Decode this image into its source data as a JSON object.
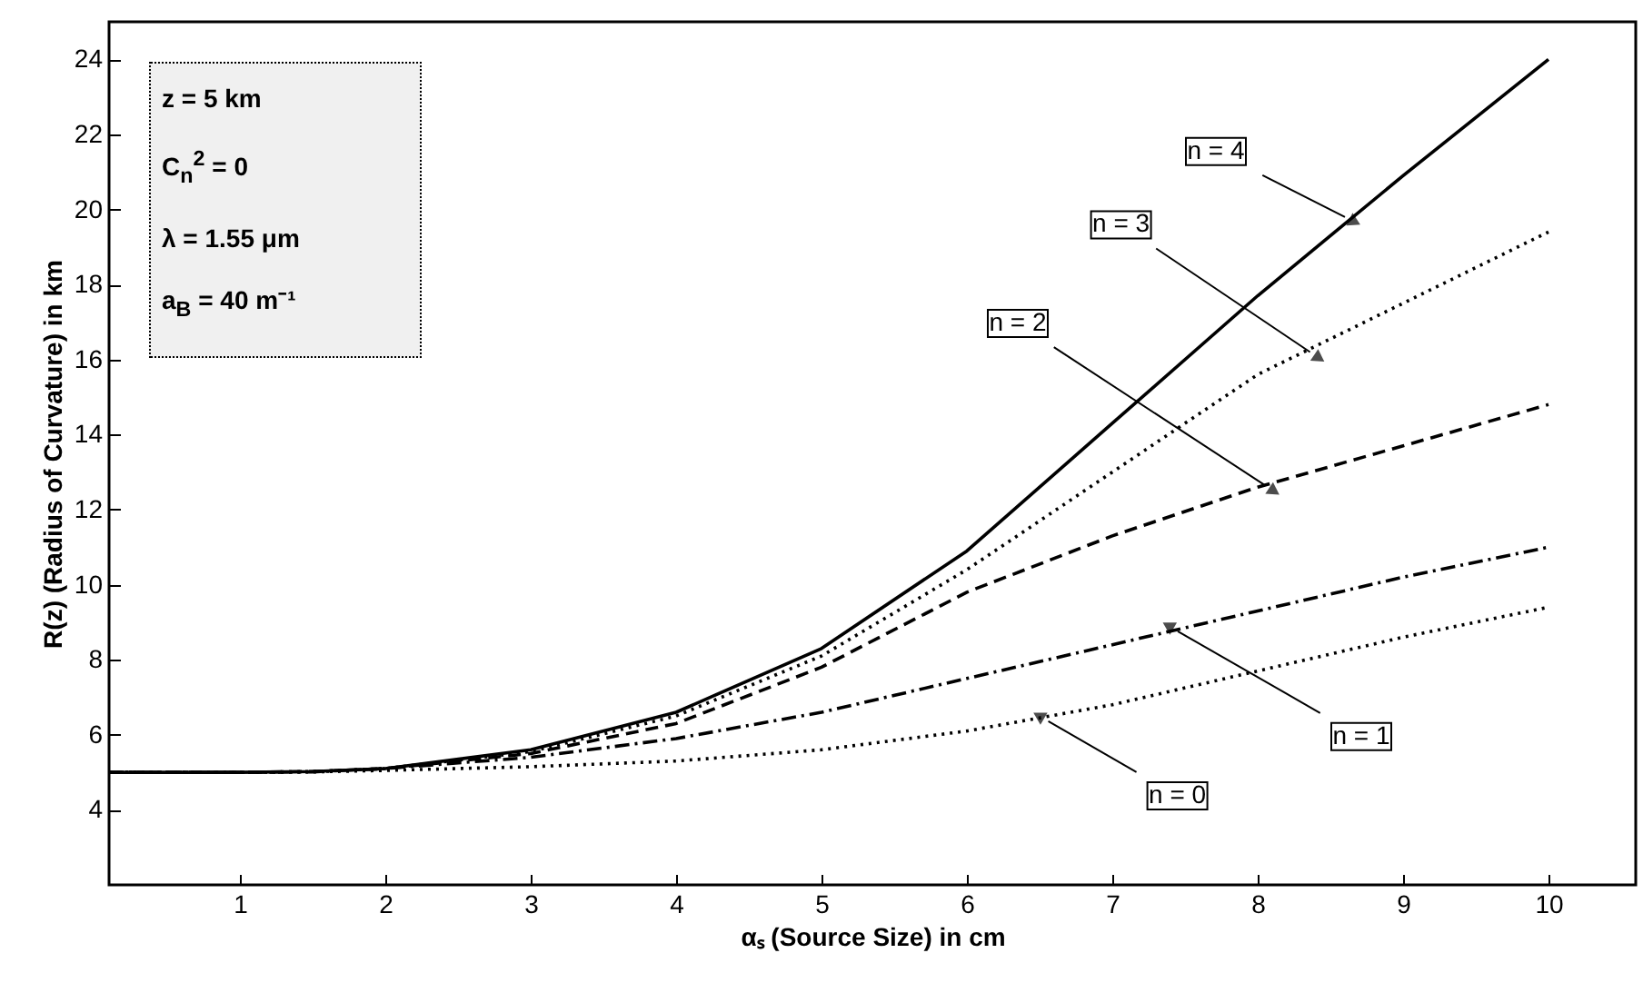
{
  "chart_data": {
    "type": "line",
    "xlabel": "αₛ (Source Size) in cm",
    "ylabel": "R(z) (Radius of Curvature) in km",
    "x": [
      0.1,
      1,
      1.5,
      2,
      3,
      4,
      5,
      6,
      7,
      8,
      9,
      10
    ],
    "series": [
      {
        "color": "#000000",
        "line_style": "solid",
        "values": [
          5,
          5,
          5.02,
          5.1,
          5.6,
          6.6,
          8.3,
          10.9,
          14.3,
          17.7,
          20.9,
          24.0
        ]
      },
      {
        "color": "#000000",
        "line_style": "dotted",
        "values": [
          5,
          5,
          5.02,
          5.1,
          5.55,
          6.5,
          8.1,
          10.4,
          13.0,
          15.6,
          17.5,
          19.4
        ]
      },
      {
        "color": "#000000",
        "line_style": "dashed",
        "values": [
          5,
          5,
          5.02,
          5.1,
          5.5,
          6.3,
          7.8,
          9.8,
          11.3,
          12.6,
          13.7,
          14.8
        ]
      },
      {
        "color": "#000000",
        "line_style": "dashdot",
        "values": [
          5,
          5,
          5.01,
          5.1,
          5.4,
          5.9,
          6.6,
          7.5,
          8.4,
          9.3,
          10.2,
          11.0
        ]
      },
      {
        "color": "#000000",
        "line_style": "dotted",
        "values": [
          5,
          5,
          5.01,
          5.05,
          5.15,
          5.3,
          5.6,
          6.1,
          6.8,
          7.7,
          8.6,
          9.4
        ]
      }
    ],
    "xlim": [
      0.1,
      10.6
    ],
    "ylim": [
      2,
      25
    ],
    "xticks": [
      1,
      2,
      3,
      4,
      5,
      6,
      7,
      8,
      9,
      10
    ],
    "yticks": [
      4,
      6,
      8,
      10,
      12,
      14,
      16,
      18,
      20,
      22,
      24
    ],
    "grid": false,
    "annotations": [
      {
        "text": "n = 4",
        "x": 8.6,
        "y": 19.8
      },
      {
        "text": "n = 3",
        "x": 8.36,
        "y": 16.2
      },
      {
        "text": "n = 2",
        "x": 8.05,
        "y": 12.65
      },
      {
        "text": "n = 1",
        "x": 7.45,
        "y": 8.76
      },
      {
        "text": "n = 0",
        "x": 6.56,
        "y": 6.36
      },
      "z = 5 km",
      "C$_{n}$$^{2}$ = 0",
      "λ = 1.55 μm",
      "a$_{B}$ = 40 m⁻¹"
    ]
  }
}
